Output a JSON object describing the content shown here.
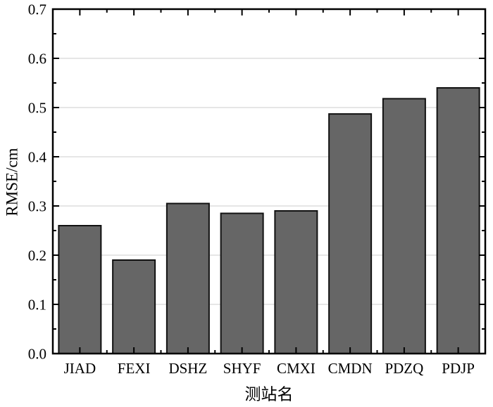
{
  "chart_data": {
    "type": "bar",
    "title": "",
    "categories": [
      "JIAD",
      "FEXI",
      "DSHZ",
      "SHYF",
      "CMXI",
      "CMDN",
      "PDZQ",
      "PDJP"
    ],
    "values": [
      0.26,
      0.19,
      0.305,
      0.285,
      0.29,
      0.487,
      0.518,
      0.54
    ],
    "series_name": "RMSE",
    "xlabel": "测站名",
    "ylabel": "RMSE/cm",
    "ylim": [
      0,
      0.7
    ],
    "ytick_step": 0.1,
    "ytick_minor_step": 0.05,
    "ytick_labels": [
      "0.0",
      "0.1",
      "0.2",
      "0.3",
      "0.4",
      "0.5",
      "0.6",
      "0.7"
    ],
    "grid": "horizontal-major",
    "legend": "none",
    "bar_edge_visible": true,
    "colors": {
      "bar_fill": "#666666",
      "bar_edge": "#111111",
      "grid": "#cccccc",
      "axis": "#000000",
      "text": "#000000",
      "background": "#ffffff"
    }
  }
}
